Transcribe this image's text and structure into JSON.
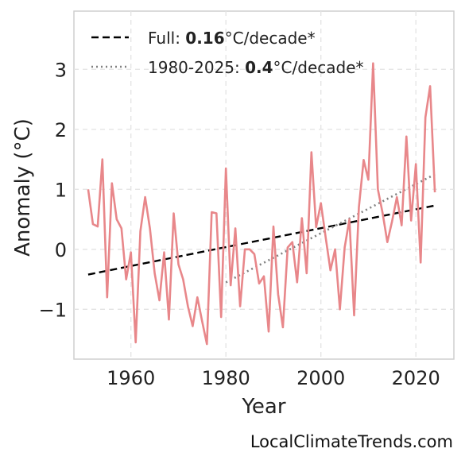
{
  "chart_data": {
    "type": "line",
    "title": "",
    "xlabel": "Year",
    "ylabel": "Anomaly (°C)",
    "xlim": [
      1948,
      2028
    ],
    "ylim": [
      -1.83,
      3.97
    ],
    "xticks": [
      1960,
      1980,
      2000,
      2020
    ],
    "xtick_labels": [
      "1960",
      "1980",
      "2000",
      "2020"
    ],
    "yticks": [
      -1,
      0,
      1,
      2,
      3
    ],
    "ytick_labels": [
      "−1",
      "0",
      "1",
      "2",
      "3"
    ],
    "grid": true,
    "legend_position": "top-left",
    "legend": [
      {
        "prefix": "Full: ",
        "bold": "0.16",
        "suffix": "°C/decade*",
        "style": "dashed",
        "color": "#000000"
      },
      {
        "prefix": "1980-2025: ",
        "bold": "0.4",
        "suffix": "°C/decade*",
        "style": "dotted",
        "color": "#808080"
      }
    ],
    "series": [
      {
        "color": "#e8878a",
        "x": [
          1951,
          1952,
          1953,
          1954,
          1955,
          1956,
          1957,
          1958,
          1959,
          1960,
          1961,
          1962,
          1963,
          1964,
          1965,
          1966,
          1967,
          1968,
          1969,
          1970,
          1971,
          1972,
          1973,
          1974,
          1975,
          1976,
          1977,
          1978,
          1979,
          1980,
          1981,
          1982,
          1983,
          1984,
          1985,
          1986,
          1987,
          1988,
          1989,
          1990,
          1991,
          1992,
          1993,
          1994,
          1995,
          1996,
          1997,
          1998,
          1999,
          2000,
          2001,
          2002,
          2003,
          2004,
          2005,
          2006,
          2007,
          2008,
          2009,
          2010,
          2011,
          2012,
          2013,
          2014,
          2015,
          2016,
          2017,
          2018,
          2019,
          2020,
          2021,
          2022,
          2023,
          2024
        ],
        "y": [
          1.0,
          0.42,
          0.38,
          1.5,
          -0.8,
          1.1,
          0.5,
          0.35,
          -0.5,
          -0.05,
          -1.55,
          0.3,
          0.87,
          0.35,
          -0.4,
          -0.85,
          -0.05,
          -1.17,
          0.6,
          -0.25,
          -0.5,
          -0.95,
          -1.28,
          -0.8,
          -1.2,
          -1.58,
          0.62,
          0.6,
          -1.13,
          1.35,
          -0.6,
          0.35,
          -0.95,
          0.0,
          0.0,
          -0.08,
          -0.57,
          -0.45,
          -1.37,
          0.38,
          -0.75,
          -1.3,
          0.03,
          0.12,
          -0.55,
          0.52,
          -0.4,
          1.62,
          0.37,
          0.77,
          0.2,
          -0.35,
          0.0,
          -1.0,
          0.03,
          0.5,
          -1.1,
          0.7,
          1.49,
          1.16,
          3.1,
          1.0,
          0.6,
          0.12,
          0.47,
          0.87,
          0.4,
          1.88,
          0.48,
          1.42,
          -0.22,
          2.2,
          2.72,
          0.95
        ]
      }
    ],
    "trends": [
      {
        "name": "Full",
        "x": [
          1951,
          2024
        ],
        "y": [
          -0.42,
          0.73
        ],
        "style": "dashed",
        "color": "#000000"
      },
      {
        "name": "1980-2025",
        "x": [
          1980,
          2024
        ],
        "y": [
          -0.55,
          1.25
        ],
        "style": "dotted",
        "color": "#808080"
      }
    ]
  },
  "watermark": "LocalClimateTrends.com"
}
